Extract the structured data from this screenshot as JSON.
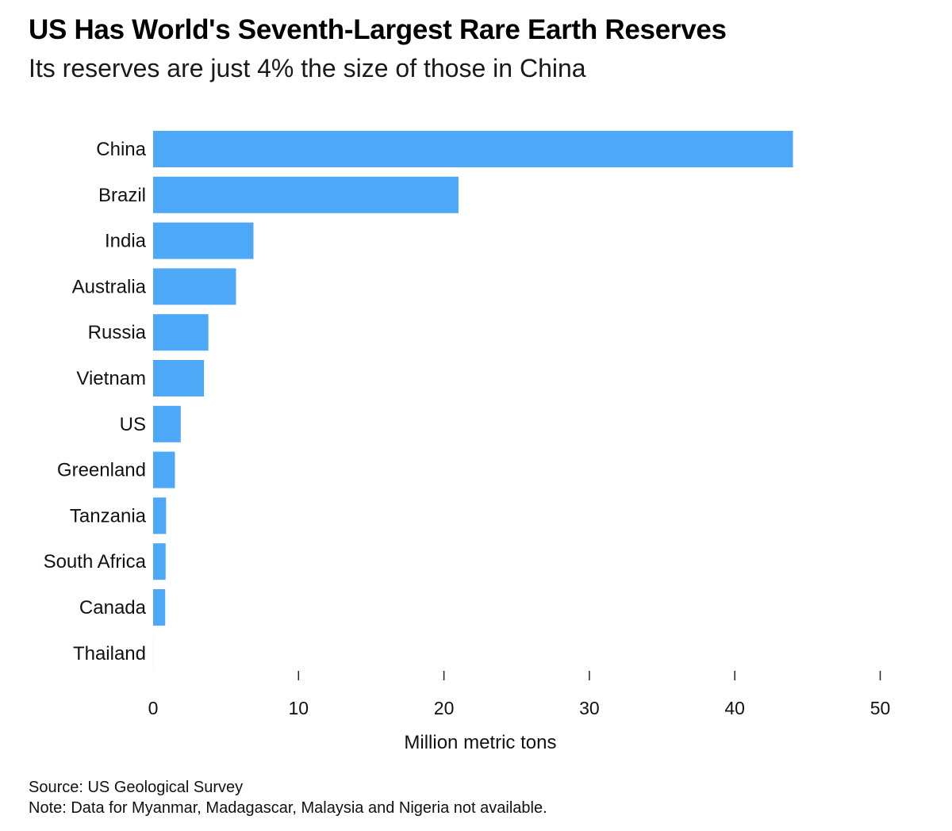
{
  "header": {
    "title": "US Has World's Seventh-Largest Rare Earth Reserves",
    "subtitle": "Its reserves are just 4% the size of those in China"
  },
  "footer": {
    "source": "Source: US Geological Survey",
    "note": "Note: Data for Myanmar, Madagascar, Malaysia and Nigeria not available."
  },
  "colors": {
    "bar": "#4da9f8",
    "axis": "#222222"
  },
  "chart_data": {
    "type": "bar",
    "orientation": "horizontal",
    "title": "US Has World's Seventh-Largest Rare Earth Reserves",
    "subtitle": "Its reserves are just 4% the size of those in China",
    "categories": [
      "China",
      "Brazil",
      "India",
      "Australia",
      "Russia",
      "Vietnam",
      "US",
      "Greenland",
      "Tanzania",
      "South Africa",
      "Canada",
      "Thailand"
    ],
    "values": [
      44,
      21,
      6.9,
      5.7,
      3.8,
      3.5,
      1.9,
      1.5,
      0.89,
      0.86,
      0.83,
      0.0045
    ],
    "xlabel": "Million metric tons",
    "ylabel": "",
    "xlim": [
      0,
      50
    ],
    "xticks": [
      0,
      10,
      20,
      30,
      40,
      50
    ],
    "grid": false,
    "legend": "none"
  }
}
